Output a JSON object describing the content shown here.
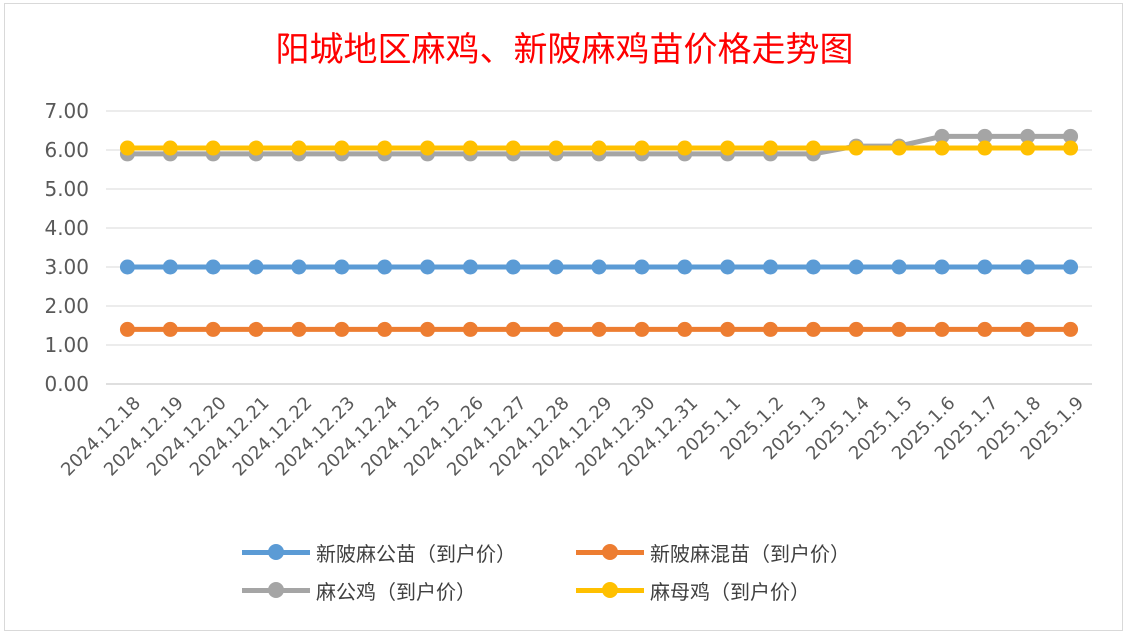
{
  "chart_data": {
    "type": "line",
    "title": "阳城地区麻鸡、新陂麻鸡苗价格走势图",
    "categories": [
      "2024.12.18",
      "2024.12.19",
      "2024.12.20",
      "2024.12.21",
      "2024.12.22",
      "2024.12.23",
      "2024.12.24",
      "2024.12.25",
      "2024.12.26",
      "2024.12.27",
      "2024.12.28",
      "2024.12.29",
      "2024.12.30",
      "2024.12.31",
      "2025.1.1",
      "2025.1.2",
      "2025.1.3",
      "2025.1.4",
      "2025.1.5",
      "2025.1.6",
      "2025.1.7",
      "2025.1.8",
      "2025.1.9"
    ],
    "ylim": [
      0,
      7
    ],
    "yticks": [
      "0.00",
      "1.00",
      "2.00",
      "3.00",
      "4.00",
      "5.00",
      "6.00",
      "7.00"
    ],
    "grid": true,
    "legend_position": "bottom",
    "series": [
      {
        "name": "新陂麻公苗（到户价）",
        "color": "#5b9bd5",
        "values": [
          3,
          3,
          3,
          3,
          3,
          3,
          3,
          3,
          3,
          3,
          3,
          3,
          3,
          3,
          3,
          3,
          3,
          3,
          3,
          3,
          3,
          3,
          3
        ]
      },
      {
        "name": "新陂麻混苗（到户价）",
        "color": "#ed7d31",
        "values": [
          1.4,
          1.4,
          1.4,
          1.4,
          1.4,
          1.4,
          1.4,
          1.4,
          1.4,
          1.4,
          1.4,
          1.4,
          1.4,
          1.4,
          1.4,
          1.4,
          1.4,
          1.4,
          1.4,
          1.4,
          1.4,
          1.4,
          1.4
        ]
      },
      {
        "name": "麻公鸡（到户价）",
        "color": "#a5a5a5",
        "values": [
          5.9,
          5.9,
          5.9,
          5.9,
          5.9,
          5.9,
          5.9,
          5.9,
          5.9,
          5.9,
          5.9,
          5.9,
          5.9,
          5.9,
          5.9,
          5.9,
          5.9,
          6.1,
          6.1,
          6.35,
          6.35,
          6.35,
          6.35
        ]
      },
      {
        "name": "麻母鸡（到户价）",
        "color": "#ffc000",
        "values": [
          6.05,
          6.05,
          6.05,
          6.05,
          6.05,
          6.05,
          6.05,
          6.05,
          6.05,
          6.05,
          6.05,
          6.05,
          6.05,
          6.05,
          6.05,
          6.05,
          6.05,
          6.05,
          6.05,
          6.05,
          6.05,
          6.05,
          6.05
        ]
      }
    ]
  }
}
